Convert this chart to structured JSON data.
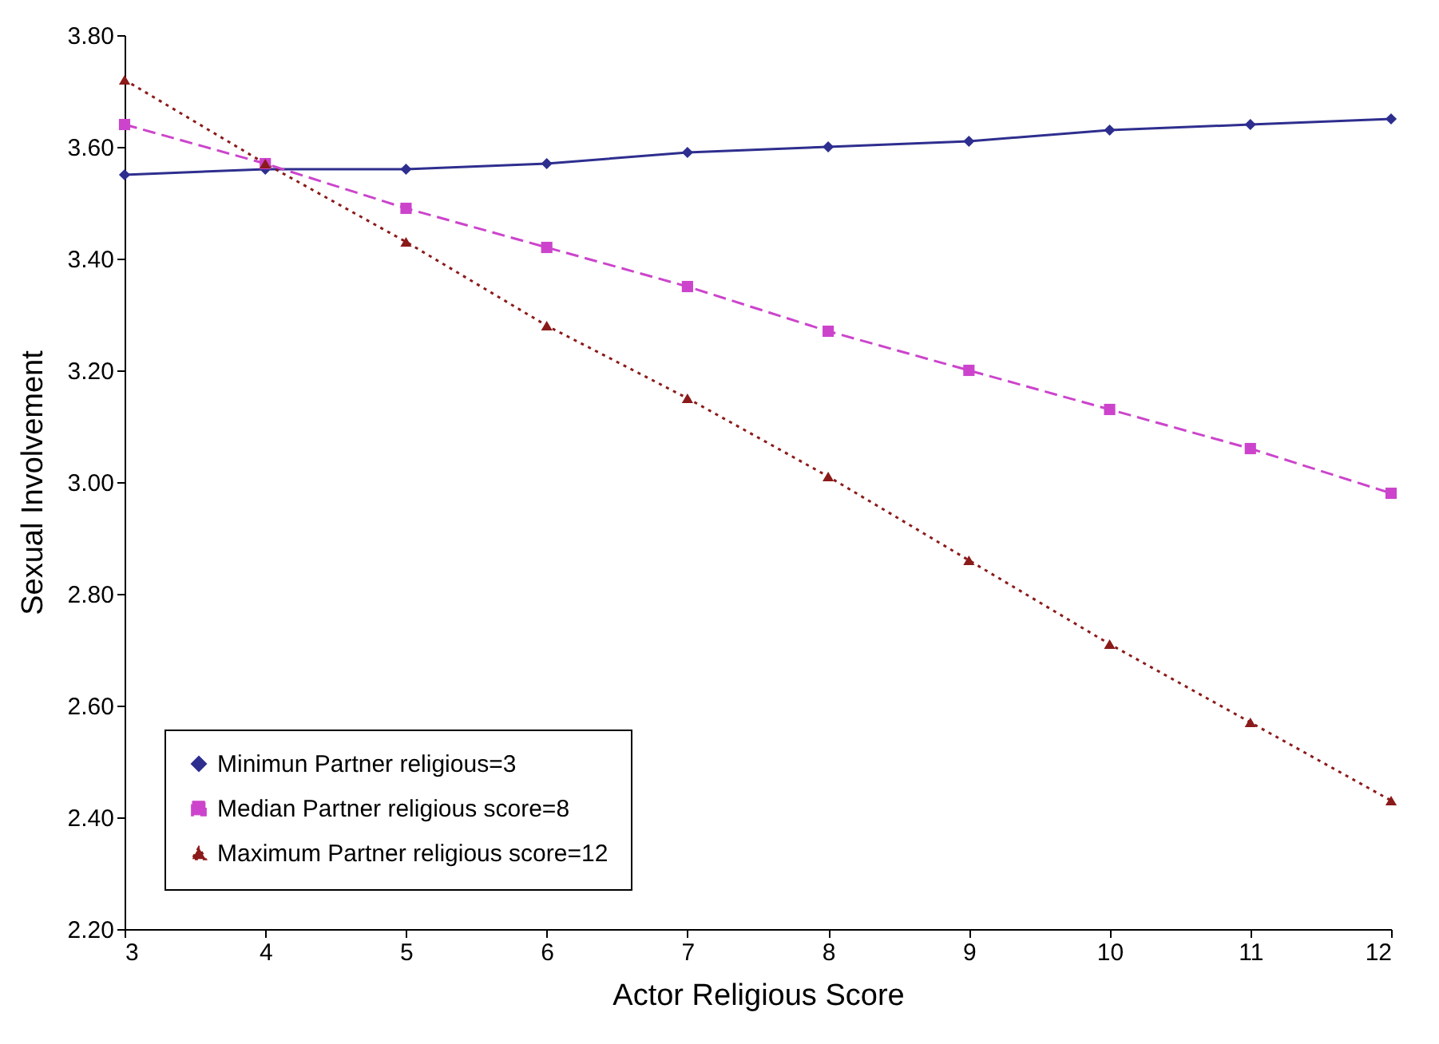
{
  "chart_data": {
    "type": "line",
    "xlabel": "Actor Religious Score",
    "ylabel": "Sexual Involvement",
    "x": [
      3,
      4,
      5,
      6,
      7,
      8,
      9,
      10,
      11,
      12
    ],
    "xlim": [
      3,
      12
    ],
    "xticks": [
      3,
      4,
      5,
      6,
      7,
      8,
      9,
      10,
      11,
      12
    ],
    "ylim": [
      2.2,
      3.8
    ],
    "yticks": [
      {
        "value": 2.2,
        "label": "2.20"
      },
      {
        "value": 2.4,
        "label": "2.40"
      },
      {
        "value": 2.6,
        "label": "2.60"
      },
      {
        "value": 2.8,
        "label": "2.80"
      },
      {
        "value": 3.0,
        "label": "3.00"
      },
      {
        "value": 3.2,
        "label": "3.20"
      },
      {
        "value": 3.4,
        "label": "3.40"
      },
      {
        "value": 3.6,
        "label": "3.60"
      },
      {
        "value": 3.8,
        "label": "3.80"
      }
    ],
    "grid": false,
    "legend": "bottom left",
    "series": [
      {
        "name": "Minimun Partner religious=3",
        "color": "#2e2e8f",
        "marker": "diamond",
        "line_style": "solid",
        "values": [
          3.55,
          3.56,
          3.56,
          3.57,
          3.59,
          3.6,
          3.61,
          3.63,
          3.64,
          3.65
        ]
      },
      {
        "name": "Median Partner religious score=8",
        "color": "#cc44cc",
        "marker": "square",
        "line_style": "dashed",
        "values": [
          3.64,
          3.57,
          3.49,
          3.42,
          3.35,
          3.27,
          3.2,
          3.13,
          3.06,
          2.98
        ]
      },
      {
        "name": "Maximum Partner religious score=12",
        "color": "#8b1a1a",
        "marker": "triangle",
        "line_style": "dotted",
        "values": [
          3.72,
          3.57,
          3.43,
          3.28,
          3.15,
          3.01,
          2.86,
          2.71,
          2.57,
          2.43
        ]
      }
    ]
  }
}
